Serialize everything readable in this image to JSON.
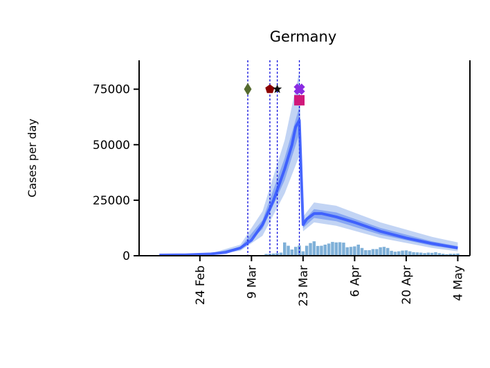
{
  "chart_data": {
    "type": "line",
    "title": "Germany",
    "ylabel": "Cases per day",
    "xlabel": "",
    "date_range": [
      "2020-02-13",
      "2020-05-04"
    ],
    "ylim": [
      0,
      88000
    ],
    "yticks": [
      0,
      25000,
      50000,
      75000
    ],
    "ytick_labels": [
      "0",
      "25000",
      "50000",
      "75000"
    ],
    "xticks": [
      "2020-02-24",
      "2020-03-09",
      "2020-03-23",
      "2020-04-06",
      "2020-04-20",
      "2020-05-04"
    ],
    "xtick_labels": [
      "24 Feb",
      "9 Mar",
      "23 Mar",
      "6 Apr",
      "20 Apr",
      "4 May"
    ],
    "intervention_dates": [
      "2020-03-08",
      "2020-03-14",
      "2020-03-16",
      "2020-03-22"
    ],
    "intervention_markers": [
      {
        "date": "2020-03-08",
        "y": 75000,
        "shape": "diamond",
        "color": "#556b2f"
      },
      {
        "date": "2020-03-14",
        "y": 75000,
        "shape": "pentagon",
        "color": "#8b0000"
      },
      {
        "date": "2020-03-16",
        "y": 75000,
        "shape": "star",
        "color": "#111111"
      },
      {
        "date": "2020-03-22",
        "y": 75000,
        "shape": "cross",
        "color": "#8a2be2"
      },
      {
        "date": "2020-03-22",
        "y": 70000,
        "shape": "square",
        "color": "#d0187a"
      }
    ],
    "series": [
      {
        "kind": "estimate",
        "color": "#3355ff",
        "points": [
          [
            "2020-02-13",
            300
          ],
          [
            "2020-02-20",
            400
          ],
          [
            "2020-02-27",
            800
          ],
          [
            "2020-03-02",
            1500
          ],
          [
            "2020-03-06",
            3500
          ],
          [
            "2020-03-09",
            7000
          ],
          [
            "2020-03-12",
            14000
          ],
          [
            "2020-03-15",
            25000
          ],
          [
            "2020-03-18",
            39000
          ],
          [
            "2020-03-20",
            50000
          ],
          [
            "2020-03-21",
            58000
          ],
          [
            "2020-03-22",
            61000
          ],
          [
            "2020-03-23",
            14000
          ],
          [
            "2020-03-24",
            16500
          ],
          [
            "2020-03-26",
            19000
          ],
          [
            "2020-03-28",
            19000
          ],
          [
            "2020-04-01",
            17500
          ],
          [
            "2020-04-06",
            15000
          ],
          [
            "2020-04-13",
            11000
          ],
          [
            "2020-04-20",
            8000
          ],
          [
            "2020-04-27",
            5500
          ],
          [
            "2020-05-04",
            3500
          ]
        ],
        "inner_band": [
          [
            14000,
            28000,
            42000,
            53000,
            63000,
            67000
          ],
          [
            30000,
            37000,
            46000,
            56000,
            58000,
            60000
          ]
        ]
      }
    ],
    "inner_band": {
      "dates": [
        "2020-02-13",
        "2020-02-27",
        "2020-03-06",
        "2020-03-12",
        "2020-03-18",
        "2020-03-22",
        "2020-03-23",
        "2020-03-26",
        "2020-04-01",
        "2020-04-13",
        "2020-04-27",
        "2020-05-04"
      ],
      "lower": [
        250,
        700,
        3000,
        12000,
        34000,
        55000,
        12500,
        17000,
        15500,
        9500,
        4500,
        2800
      ],
      "upper": [
        350,
        900,
        4000,
        16000,
        44000,
        67000,
        15500,
        21000,
        19500,
        12500,
        6500,
        4300
      ]
    },
    "outer_band": {
      "dates": [
        "2020-02-13",
        "2020-02-27",
        "2020-03-06",
        "2020-03-12",
        "2020-03-18",
        "2020-03-22",
        "2020-03-23",
        "2020-03-26",
        "2020-04-01",
        "2020-04-13",
        "2020-04-27",
        "2020-05-04"
      ],
      "lower": [
        150,
        500,
        2200,
        9000,
        28000,
        45000,
        11000,
        15000,
        13500,
        8000,
        3500,
        2000
      ],
      "upper": [
        450,
        1100,
        5000,
        20000,
        52000,
        83000,
        17500,
        24000,
        22500,
        15000,
        8500,
        6000
      ]
    },
    "reported_cases": {
      "color": "#7fb0d8",
      "start_date": "2020-03-13",
      "values": [
        800,
        900,
        1000,
        1200,
        1400,
        6000,
        4500,
        2800,
        4000,
        4600,
        2000,
        4500,
        5700,
        6500,
        4400,
        4500,
        5000,
        5500,
        6200,
        6000,
        6100,
        5900,
        3800,
        4000,
        4200,
        5000,
        3500,
        2500,
        2500,
        3000,
        3000,
        3800,
        4000,
        3500,
        2200,
        1800,
        2000,
        2300,
        2400,
        2000,
        1600,
        1500,
        1400,
        1200,
        1400,
        1300,
        1600,
        1200,
        900,
        700,
        900,
        900,
        1000
      ]
    }
  }
}
